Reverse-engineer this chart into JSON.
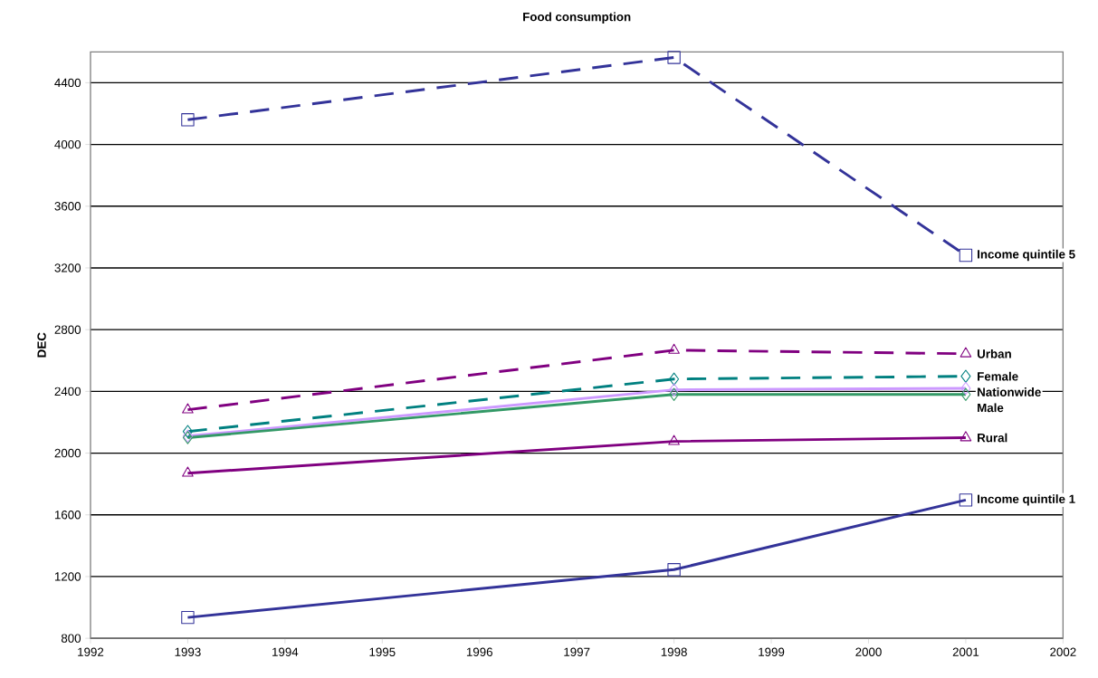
{
  "chart_data": {
    "type": "line",
    "title": "Food consumption",
    "ylabel": "DEC",
    "x": [
      1993,
      1998,
      2001
    ],
    "series": [
      {
        "name": "Income quintile  5",
        "color": "#333399",
        "marker": "square",
        "line_style": "dashed",
        "values": [
          4160,
          4564,
          3282
        ]
      },
      {
        "name": "Urban",
        "color": "#800080",
        "marker": "triangle",
        "line_style": "dashed",
        "values": [
          2281,
          2667,
          2644
        ]
      },
      {
        "name": "Female",
        "color": "#008080",
        "marker": "diamond",
        "line_style": "dashed",
        "values": [
          2140,
          2480,
          2498
        ]
      },
      {
        "name": "Nationwide",
        "color": "#cc99ff",
        "marker": "diamond",
        "line_style": "solid",
        "values": [
          2110,
          2410,
          2420
        ]
      },
      {
        "name": "Male",
        "color": "#339966",
        "marker": "diamond",
        "line_style": "solid",
        "values": [
          2100,
          2380,
          2380
        ]
      },
      {
        "name": "Rural",
        "color": "#800080",
        "marker": "triangle",
        "line_style": "solid",
        "values": [
          1870,
          2076,
          2100
        ]
      },
      {
        "name": "Income quintile  1",
        "color": "#333399",
        "marker": "square",
        "line_style": "solid",
        "values": [
          935,
          1245,
          1696
        ]
      }
    ],
    "xlim": [
      1992,
      2002
    ],
    "ylim": [
      800,
      4600
    ],
    "xticks": [
      1992,
      1993,
      1994,
      1995,
      1996,
      1997,
      1998,
      1999,
      2000,
      2001,
      2002
    ],
    "yticks": [
      800,
      1200,
      1600,
      2000,
      2400,
      2800,
      3200,
      3600,
      4000,
      4400
    ],
    "grid": "y"
  }
}
